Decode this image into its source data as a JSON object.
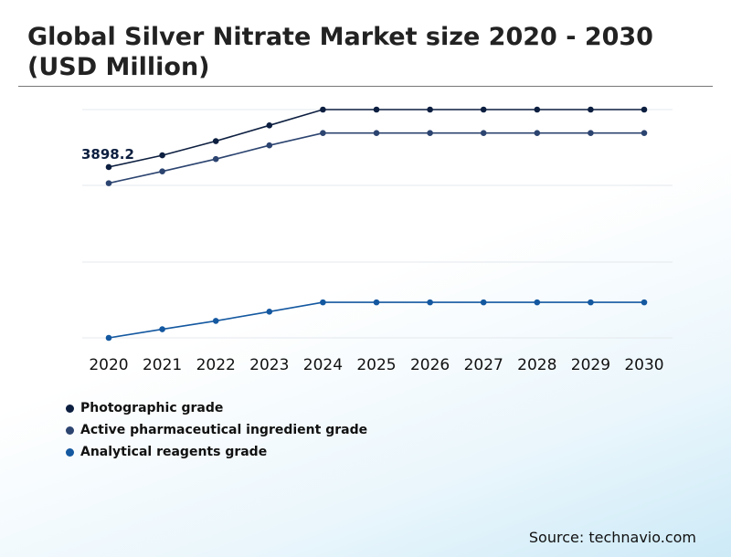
{
  "chart_data": {
    "type": "line",
    "title": "Global Silver Nitrate Market size 2020 - 2030 (USD Million)",
    "x": [
      "2020",
      "2021",
      "2022",
      "2023",
      "2024",
      "2025",
      "2026",
      "2027",
      "2028",
      "2029",
      "2030"
    ],
    "ylim": [
      0,
      5900
    ],
    "grid": true,
    "legend_position": "bottom-left",
    "series": [
      {
        "name": "Photographic grade",
        "color": "#0d1f40",
        "values": [
          3898.2,
          4166,
          4490,
          4850,
          5210,
          5210,
          5210,
          5210,
          5210,
          5210,
          5210
        ]
      },
      {
        "name": "Active pharmaceutical ingredient grade",
        "color": "#2c4470",
        "values": [
          3530,
          3800,
          4080,
          4393,
          4675,
          4675,
          4675,
          4675,
          4675,
          4675,
          4675
        ]
      },
      {
        "name": "Analytical reagents grade",
        "color": "#1458a0",
        "values": [
          0,
          196,
          387,
          598,
          810,
          810,
          810,
          810,
          810,
          810,
          810
        ]
      }
    ],
    "annotations": [
      {
        "series": 0,
        "index": 0,
        "text": "3898.2"
      }
    ]
  },
  "source": "Source: technavio.com"
}
